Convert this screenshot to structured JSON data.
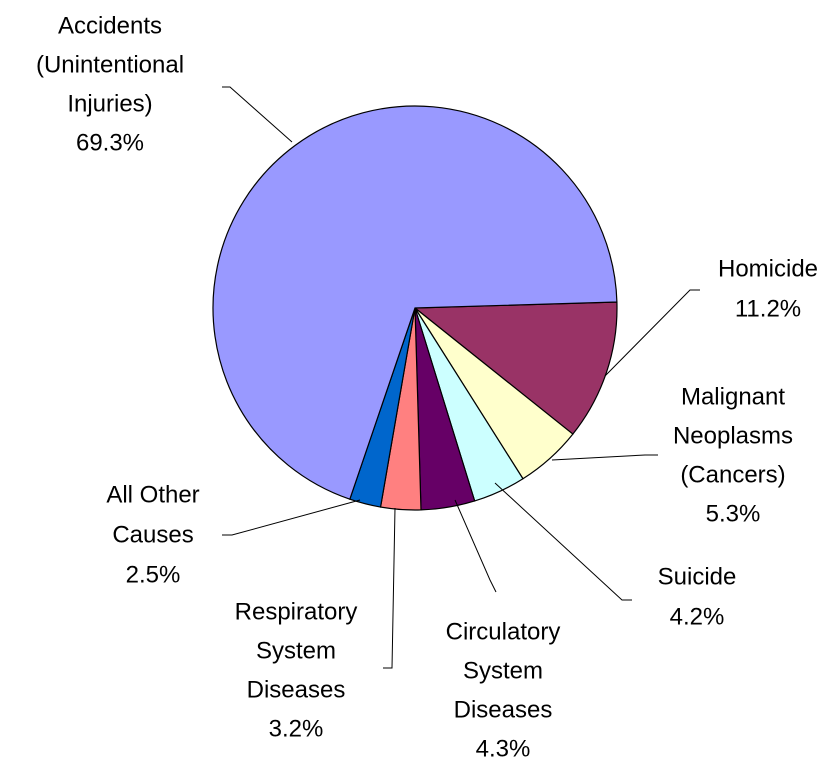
{
  "chart_data": {
    "type": "pie",
    "categories": [
      [
        "Homicide"
      ],
      [
        "Malignant",
        "Neoplasms",
        "(Cancers)"
      ],
      [
        "Suicide"
      ],
      [
        "Circulatory",
        "System",
        "Diseases"
      ],
      [
        "Respiratory",
        "System",
        "Diseases"
      ],
      [
        "All Other",
        "Causes"
      ],
      [
        "Accidents",
        "(Unintentional",
        "Injuries)"
      ]
    ],
    "values": [
      11.2,
      5.3,
      4.2,
      4.3,
      3.2,
      2.5,
      69.3
    ],
    "value_labels": [
      "11.2%",
      "5.3%",
      "4.2%",
      "4.3%",
      "3.2%",
      "2.5%",
      "69.3%"
    ],
    "colors": [
      "#993366",
      "#ffffcc",
      "#ccffff",
      "#660066",
      "#ff8080",
      "#0066cc",
      "#9999ff"
    ]
  }
}
